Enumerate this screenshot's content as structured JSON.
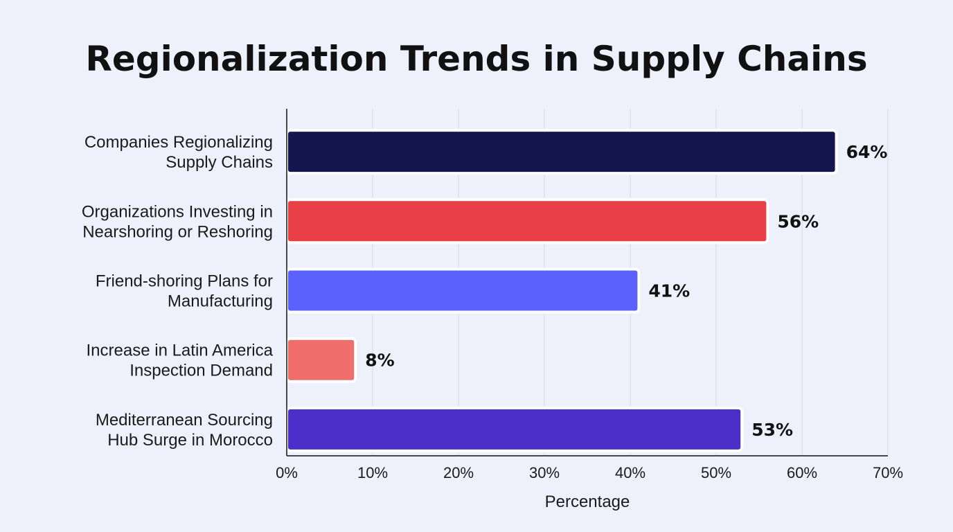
{
  "chart_data": {
    "type": "bar",
    "orientation": "horizontal",
    "title": "Regionalization Trends in Supply Chains",
    "xlabel": "Percentage",
    "ylabel": "",
    "xlim": [
      0,
      70
    ],
    "x_ticks": [
      "0%",
      "10%",
      "20%",
      "30%",
      "40%",
      "50%",
      "60%",
      "70%"
    ],
    "x_tick_values": [
      0,
      10,
      20,
      30,
      40,
      50,
      60,
      70
    ],
    "grid": "vertical",
    "categories": [
      [
        "Companies Regionalizing",
        "Supply Chains"
      ],
      [
        "Organizations Investing in",
        "Nearshoring or Reshoring"
      ],
      [
        "Friend-shoring Plans for",
        "Manufacturing"
      ],
      [
        "Increase in Latin America",
        "Inspection Demand"
      ],
      [
        "Mediterranean Sourcing",
        "Hub Surge in Morocco"
      ]
    ],
    "values": [
      64,
      56,
      41,
      8,
      53
    ],
    "value_labels": [
      "64%",
      "56%",
      "41%",
      "8%",
      "53%"
    ],
    "colors": [
      "#16164f",
      "#e84046",
      "#5a62fb",
      "#ef6d6b",
      "#4c2ec9"
    ]
  }
}
